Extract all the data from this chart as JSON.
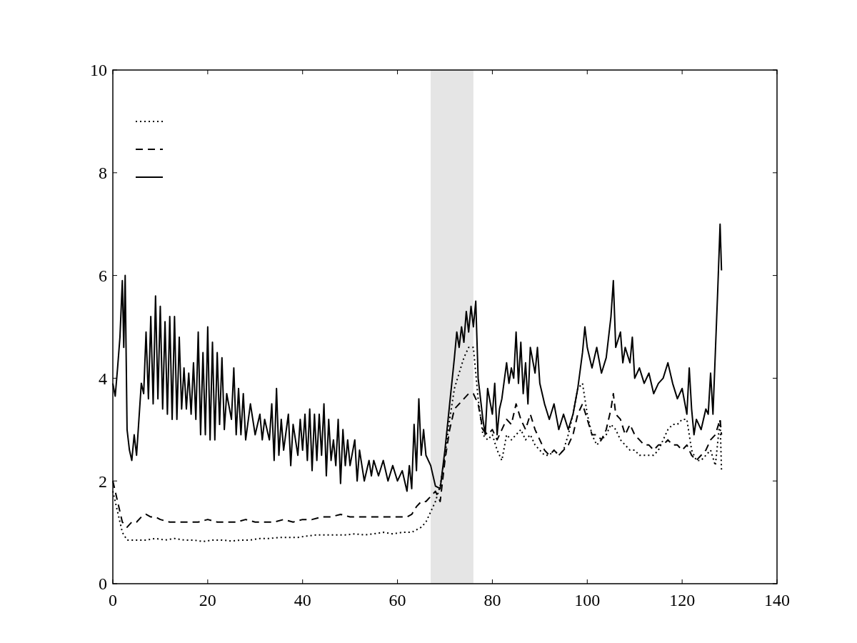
{
  "chart_data": {
    "type": "line",
    "xlim": [
      0,
      140
    ],
    "xticks": [
      0,
      20,
      40,
      60,
      80,
      100,
      120,
      140
    ],
    "ylim": [
      0,
      10
    ],
    "yticks": [
      0,
      2,
      4,
      6,
      8,
      10
    ],
    "grid": false,
    "bands": [
      {
        "axis": "x",
        "from": 67,
        "to": 76,
        "color": "#e5e5e5"
      }
    ],
    "series": [
      {
        "color": "#000000",
        "line_style": "dotted",
        "x": [
          0,
          1,
          2,
          3,
          5,
          7,
          9,
          11,
          13,
          15,
          17,
          19,
          21,
          23,
          25,
          27,
          29,
          31,
          33,
          35,
          37,
          39,
          41,
          43,
          45,
          47,
          49,
          51,
          53,
          55,
          57,
          59,
          61,
          63,
          64,
          65,
          66,
          67,
          68,
          69,
          70,
          71,
          72,
          73,
          74,
          75,
          76,
          77,
          78,
          79,
          80,
          81,
          82,
          83,
          84,
          85,
          86,
          87,
          88,
          89,
          90,
          91,
          92,
          93,
          94,
          95,
          96,
          97,
          98,
          99,
          100,
          101,
          102,
          103,
          104,
          105,
          106,
          107,
          108,
          109,
          110,
          111,
          112,
          113,
          114,
          115,
          116,
          117,
          118,
          119,
          120,
          121,
          122,
          123,
          124,
          125,
          126,
          127,
          128,
          128.3
        ],
        "values": [
          1.8,
          1.4,
          1.0,
          0.85,
          0.85,
          0.85,
          0.88,
          0.85,
          0.88,
          0.85,
          0.85,
          0.82,
          0.85,
          0.85,
          0.83,
          0.85,
          0.85,
          0.88,
          0.88,
          0.9,
          0.9,
          0.9,
          0.93,
          0.95,
          0.95,
          0.95,
          0.95,
          0.97,
          0.95,
          0.97,
          1.0,
          0.97,
          1.0,
          1.0,
          1.05,
          1.1,
          1.2,
          1.4,
          1.6,
          1.9,
          2.5,
          3.2,
          3.8,
          4.1,
          4.4,
          4.6,
          4.6,
          3.6,
          2.9,
          2.8,
          2.9,
          2.6,
          2.4,
          2.9,
          2.8,
          2.9,
          3.0,
          2.8,
          2.9,
          2.7,
          2.6,
          2.5,
          2.5,
          2.6,
          2.5,
          2.6,
          2.9,
          3.3,
          3.8,
          3.9,
          3.3,
          2.9,
          2.7,
          2.8,
          2.9,
          3.1,
          3.0,
          2.8,
          2.7,
          2.6,
          2.6,
          2.5,
          2.5,
          2.5,
          2.5,
          2.6,
          2.8,
          3.0,
          3.1,
          3.1,
          3.2,
          3.2,
          2.6,
          2.4,
          2.4,
          2.5,
          2.6,
          2.3,
          3.2,
          2.2
        ]
      },
      {
        "color": "#000000",
        "line_style": "dashed",
        "x": [
          0,
          1,
          2,
          3,
          4,
          5,
          6,
          7,
          8,
          9,
          10,
          12,
          14,
          16,
          18,
          20,
          22,
          24,
          26,
          28,
          30,
          32,
          34,
          36,
          38,
          40,
          42,
          44,
          46,
          48,
          50,
          52,
          54,
          56,
          58,
          60,
          62,
          63,
          64,
          65,
          66,
          67,
          68,
          69,
          70,
          71,
          72,
          73,
          74,
          75,
          76,
          77,
          78,
          79,
          80,
          81,
          82,
          83,
          84,
          85,
          86,
          87,
          88,
          89,
          90,
          91,
          92,
          93,
          94,
          95,
          96,
          97,
          98,
          99,
          100,
          101,
          102,
          103,
          104,
          105,
          105.5,
          106,
          107,
          108,
          109,
          110,
          111,
          112,
          113,
          114,
          115,
          116,
          117,
          118,
          119,
          120,
          121,
          122,
          123,
          124,
          125,
          126,
          127,
          128,
          128.3
        ],
        "values": [
          2.0,
          1.6,
          1.2,
          1.1,
          1.2,
          1.2,
          1.3,
          1.35,
          1.3,
          1.3,
          1.25,
          1.2,
          1.2,
          1.2,
          1.2,
          1.25,
          1.2,
          1.2,
          1.2,
          1.25,
          1.2,
          1.2,
          1.2,
          1.25,
          1.2,
          1.25,
          1.25,
          1.3,
          1.3,
          1.35,
          1.3,
          1.3,
          1.3,
          1.3,
          1.3,
          1.3,
          1.3,
          1.35,
          1.5,
          1.6,
          1.6,
          1.7,
          1.8,
          1.6,
          2.4,
          3.0,
          3.4,
          3.5,
          3.6,
          3.7,
          3.7,
          3.5,
          3.0,
          2.9,
          3.0,
          2.8,
          3.0,
          3.2,
          3.1,
          3.5,
          3.2,
          3.0,
          3.3,
          3.0,
          2.8,
          2.6,
          2.5,
          2.6,
          2.5,
          2.6,
          2.7,
          2.9,
          3.3,
          3.5,
          3.2,
          2.9,
          2.9,
          2.8,
          3.0,
          3.4,
          3.7,
          3.3,
          3.2,
          2.9,
          3.1,
          2.9,
          2.8,
          2.7,
          2.7,
          2.6,
          2.7,
          2.7,
          2.8,
          2.7,
          2.7,
          2.6,
          2.7,
          2.5,
          2.4,
          2.5,
          2.6,
          2.8,
          2.9,
          3.2,
          2.9
        ]
      },
      {
        "color": "#000000",
        "line_style": "solid",
        "x": [
          0,
          0.5,
          1,
          1.5,
          2,
          2.3,
          2.6,
          3,
          3.5,
          4,
          4.5,
          5,
          5.5,
          6,
          6.5,
          7,
          7.5,
          8,
          8.5,
          9,
          9.5,
          10,
          10.5,
          11,
          11.5,
          12,
          12.5,
          13,
          13.5,
          14,
          14.5,
          15,
          15.5,
          16,
          16.5,
          17,
          17.5,
          18,
          18.5,
          19,
          19.5,
          20,
          20.5,
          21,
          21.5,
          22,
          22.5,
          23,
          23.5,
          24,
          25,
          25.5,
          26,
          26.5,
          27,
          27.5,
          28,
          29,
          30,
          31,
          31.5,
          32,
          33,
          33.5,
          34,
          34.5,
          35,
          35.5,
          36,
          37,
          37.5,
          38,
          39,
          39.5,
          40,
          40.5,
          41,
          41.5,
          42,
          42.5,
          43,
          43.5,
          44,
          44.5,
          45,
          45.5,
          46,
          46.5,
          47,
          47.5,
          48,
          48.5,
          49,
          49.5,
          50,
          51,
          51.5,
          52,
          53,
          54,
          54.5,
          55,
          56,
          57,
          58,
          59,
          60,
          61,
          62,
          62.5,
          63,
          63.5,
          64,
          64.5,
          65,
          65.5,
          66,
          67,
          68,
          69,
          70,
          71,
          72,
          72.5,
          73,
          73.5,
          74,
          74.5,
          75,
          75.5,
          76,
          76.5,
          77,
          78,
          78.5,
          79,
          80,
          80.5,
          81,
          81.5,
          82,
          83,
          83.5,
          84,
          84.5,
          85,
          85.5,
          86,
          86.5,
          87,
          87.5,
          88,
          89,
          89.5,
          90,
          91,
          92,
          93,
          94,
          95,
          96,
          97,
          98,
          99,
          99.5,
          100,
          101,
          102,
          103,
          104,
          105,
          105.5,
          106,
          107,
          107.5,
          108,
          109,
          109.5,
          110,
          111,
          112,
          113,
          114,
          115,
          116,
          117,
          118,
          119,
          120,
          121,
          121.5,
          122,
          122.5,
          123,
          124,
          125,
          125.5,
          126,
          126.5,
          127,
          127.5,
          128,
          128.3
        ],
        "values": [
          3.9,
          3.65,
          4.2,
          4.8,
          5.9,
          4.6,
          6.0,
          3.0,
          2.6,
          2.4,
          2.9,
          2.5,
          3.2,
          3.9,
          3.7,
          4.9,
          3.6,
          5.2,
          3.5,
          5.6,
          3.6,
          5.4,
          3.4,
          5.1,
          3.3,
          5.2,
          3.2,
          5.2,
          3.2,
          4.8,
          3.4,
          4.2,
          3.4,
          4.1,
          3.3,
          4.3,
          3.2,
          4.9,
          2.9,
          4.5,
          2.9,
          5.0,
          2.8,
          4.7,
          2.8,
          4.5,
          3.1,
          4.4,
          3.0,
          3.7,
          3.2,
          4.2,
          2.9,
          3.8,
          2.9,
          3.7,
          2.8,
          3.5,
          2.9,
          3.3,
          2.8,
          3.2,
          2.8,
          3.5,
          2.4,
          3.8,
          2.5,
          3.2,
          2.6,
          3.3,
          2.3,
          3.1,
          2.5,
          3.2,
          2.6,
          3.3,
          2.4,
          3.4,
          2.2,
          3.3,
          2.4,
          3.3,
          2.5,
          3.5,
          2.1,
          3.2,
          2.4,
          2.8,
          2.3,
          3.2,
          1.95,
          3.0,
          2.3,
          2.8,
          2.3,
          2.8,
          2.0,
          2.6,
          2.0,
          2.4,
          2.1,
          2.4,
          2.1,
          2.4,
          2.0,
          2.3,
          2.0,
          2.2,
          1.8,
          2.3,
          1.85,
          3.1,
          2.2,
          3.6,
          2.5,
          3.0,
          2.5,
          2.3,
          1.9,
          1.85,
          2.6,
          3.5,
          4.4,
          4.9,
          4.6,
          5.0,
          4.7,
          5.3,
          4.9,
          5.4,
          5.0,
          5.5,
          4.0,
          3.2,
          2.9,
          3.8,
          3.3,
          3.9,
          2.9,
          3.4,
          3.6,
          4.3,
          3.9,
          4.2,
          4.0,
          4.9,
          3.9,
          4.7,
          3.7,
          4.3,
          3.5,
          4.6,
          4.1,
          4.6,
          3.9,
          3.5,
          3.2,
          3.5,
          3.0,
          3.3,
          3.0,
          3.3,
          3.8,
          4.5,
          5.0,
          4.6,
          4.2,
          4.6,
          4.1,
          4.4,
          5.2,
          5.9,
          4.6,
          4.9,
          4.3,
          4.6,
          4.3,
          4.8,
          4.0,
          4.2,
          3.9,
          4.1,
          3.7,
          3.9,
          4.0,
          4.3,
          3.9,
          3.6,
          3.8,
          3.3,
          4.2,
          3.4,
          2.9,
          3.2,
          3.0,
          3.4,
          3.3,
          4.1,
          3.3,
          4.5,
          5.7,
          7.0,
          6.1
        ]
      }
    ]
  }
}
